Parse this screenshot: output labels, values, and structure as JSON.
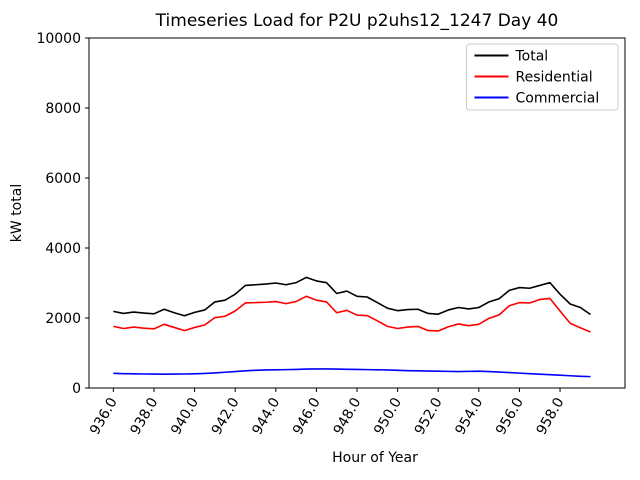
{
  "figure": {
    "kind": "matplotlib-line-chart"
  },
  "chart_data": {
    "type": "line",
    "title": "Timeseries Load for P2U p2uhs12_1247  Day 40",
    "xlabel": "Hour of Year",
    "ylabel": "kW total",
    "xlim": [
      934.8,
      961.2
    ],
    "ylim": [
      0,
      10000
    ],
    "yticks": [
      0,
      2000,
      4000,
      6000,
      8000,
      10000
    ],
    "ytick_labels": [
      "0",
      "2000",
      "4000",
      "6000",
      "8000",
      "10000"
    ],
    "xticks": [
      936,
      938,
      940,
      942,
      944,
      946,
      948,
      950,
      952,
      954,
      956,
      958
    ],
    "xtick_labels": [
      "936.0",
      "938.0",
      "940.0",
      "942.0",
      "944.0",
      "946.0",
      "948.0",
      "950.0",
      "952.0",
      "954.0",
      "956.0",
      "958.0"
    ],
    "xtick_rotation_deg": 60,
    "grid": false,
    "legend_position": "upper right",
    "axis_color": "#000000",
    "background_color": "#ffffff",
    "legend_border_color": "#cccccc",
    "x": [
      936.0,
      936.5,
      937.0,
      937.5,
      938.0,
      938.5,
      939.0,
      939.5,
      940.0,
      940.5,
      941.0,
      941.5,
      942.0,
      942.5,
      943.0,
      943.5,
      944.0,
      944.5,
      945.0,
      945.5,
      946.0,
      946.5,
      947.0,
      947.5,
      948.0,
      948.5,
      949.0,
      949.5,
      950.0,
      950.5,
      951.0,
      951.5,
      952.0,
      952.5,
      953.0,
      953.5,
      954.0,
      954.5,
      955.0,
      955.5,
      956.0,
      956.5,
      957.0,
      957.5,
      958.0,
      958.5,
      959.0,
      959.5
    ],
    "series": [
      {
        "name": "Total",
        "color": "#000000",
        "values": [
          2190,
          2130,
          2170,
          2140,
          2120,
          2250,
          2150,
          2065,
          2160,
          2230,
          2460,
          2510,
          2680,
          2930,
          2950,
          2970,
          3000,
          2950,
          3010,
          3160,
          3060,
          3010,
          2700,
          2770,
          2620,
          2600,
          2440,
          2280,
          2210,
          2240,
          2250,
          2130,
          2110,
          2230,
          2300,
          2260,
          2300,
          2460,
          2550,
          2790,
          2870,
          2850,
          2930,
          3010,
          2680,
          2400,
          2300,
          2100
        ]
      },
      {
        "name": "Residential",
        "color": "#ff0000",
        "values": [
          1760,
          1700,
          1740,
          1710,
          1690,
          1820,
          1730,
          1640,
          1730,
          1800,
          2010,
          2050,
          2200,
          2430,
          2440,
          2450,
          2470,
          2410,
          2470,
          2620,
          2510,
          2460,
          2150,
          2220,
          2080,
          2070,
          1920,
          1760,
          1700,
          1740,
          1760,
          1640,
          1630,
          1750,
          1830,
          1780,
          1820,
          1990,
          2090,
          2350,
          2440,
          2430,
          2530,
          2560,
          2200,
          1850,
          1720,
          1600
        ]
      },
      {
        "name": "Commercial",
        "color": "#0000ff",
        "values": [
          420,
          410,
          405,
          400,
          398,
          395,
          398,
          400,
          405,
          415,
          430,
          450,
          470,
          490,
          505,
          515,
          520,
          525,
          530,
          540,
          545,
          545,
          540,
          535,
          530,
          525,
          520,
          515,
          505,
          495,
          490,
          485,
          480,
          475,
          470,
          475,
          480,
          470,
          455,
          440,
          425,
          410,
          395,
          380,
          365,
          350,
          335,
          325
        ]
      }
    ]
  }
}
